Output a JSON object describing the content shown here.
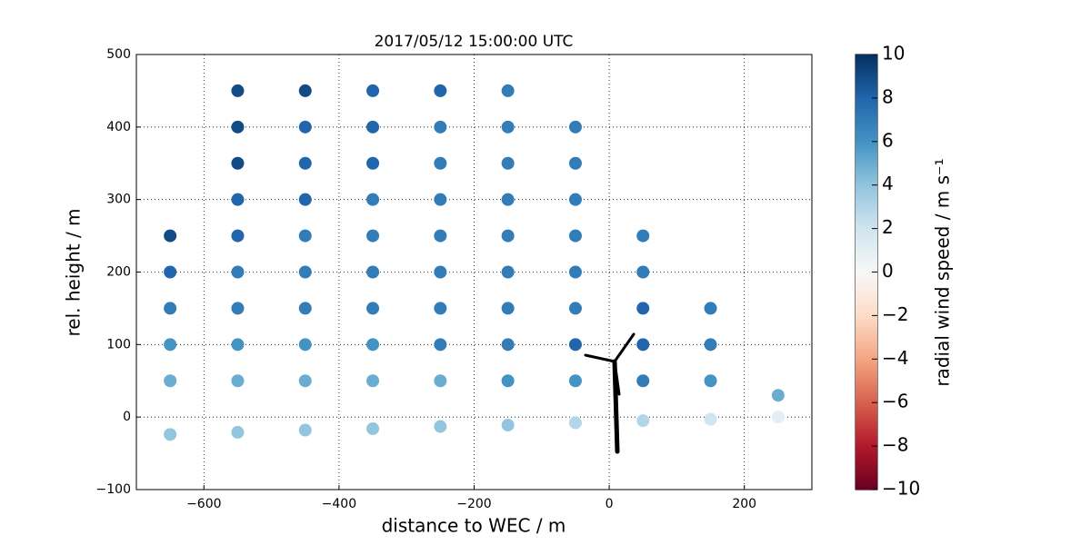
{
  "chart_data": {
    "type": "scatter",
    "title": "2017/05/12 15:00:00 UTC",
    "xlabel": "distance to WEC / m",
    "ylabel": "rel. height / m",
    "colorbar_label": "radial wind speed / m s⁻¹",
    "colormap": "RdBu",
    "x": [
      -650,
      -650,
      -650,
      -650,
      -650,
      -650,
      -550,
      -550,
      -550,
      -550,
      -550,
      -550,
      -550,
      -550,
      -550,
      -550,
      -450,
      -450,
      -450,
      -450,
      -450,
      -450,
      -450,
      -450,
      -450,
      -450,
      -350,
      -350,
      -350,
      -350,
      -350,
      -350,
      -350,
      -350,
      -350,
      -350,
      -250,
      -250,
      -250,
      -250,
      -250,
      -250,
      -250,
      -250,
      -250,
      -250,
      -150,
      -150,
      -150,
      -150,
      -150,
      -150,
      -150,
      -150,
      -150,
      -150,
      -50,
      -50,
      -50,
      -50,
      -50,
      -50,
      -50,
      -50,
      -50,
      50,
      50,
      50,
      50,
      50,
      50,
      150,
      150,
      150,
      150,
      250,
      250
    ],
    "y": [
      -24,
      50,
      100,
      150,
      200,
      250,
      -21,
      50,
      100,
      150,
      200,
      250,
      300,
      350,
      400,
      450,
      -18,
      50,
      100,
      150,
      200,
      250,
      300,
      350,
      400,
      450,
      -16,
      50,
      100,
      150,
      200,
      250,
      300,
      350,
      400,
      450,
      -13,
      50,
      100,
      150,
      200,
      250,
      300,
      350,
      400,
      450,
      -11,
      50,
      100,
      150,
      200,
      250,
      300,
      350,
      400,
      450,
      -8,
      50,
      100,
      150,
      200,
      250,
      300,
      350,
      400,
      -5,
      50,
      100,
      150,
      200,
      250,
      -3,
      50,
      100,
      150,
      0,
      30
    ],
    "values": [
      4,
      5,
      6,
      7,
      8,
      9,
      4,
      5,
      6,
      7,
      7,
      8,
      8,
      9,
      9,
      9,
      4,
      5,
      6,
      7,
      7,
      7,
      8,
      8,
      8,
      9,
      4,
      5,
      6,
      7,
      7,
      7,
      7,
      8,
      8,
      8,
      4,
      5,
      7,
      7,
      7,
      7,
      7,
      7,
      7,
      8,
      4,
      6,
      7,
      7,
      7,
      7,
      7,
      7,
      7,
      7,
      3,
      6,
      8,
      7,
      7,
      7,
      7,
      7,
      7,
      3,
      7,
      8,
      8,
      7,
      7,
      2,
      6,
      7,
      7,
      1,
      5
    ],
    "xlim": [
      -700,
      300
    ],
    "xticks": [
      {
        "value": -600,
        "label": "−600"
      },
      {
        "value": -400,
        "label": "−400"
      },
      {
        "value": -200,
        "label": "−200"
      },
      0,
      200
    ],
    "ylim": [
      -100,
      500
    ],
    "yticks": [
      {
        "value": -100,
        "label": "−100"
      },
      0,
      100,
      200,
      300,
      400,
      500
    ],
    "clim": [
      -10,
      10
    ],
    "cticks": [
      {
        "value": -10,
        "label": "−10"
      },
      {
        "value": -8,
        "label": "−8"
      },
      {
        "value": -6,
        "label": "−6"
      },
      {
        "value": -4,
        "label": "−4"
      },
      {
        "value": -2,
        "label": "−2"
      },
      0,
      2,
      4,
      6,
      8,
      10
    ],
    "grid": true
  }
}
